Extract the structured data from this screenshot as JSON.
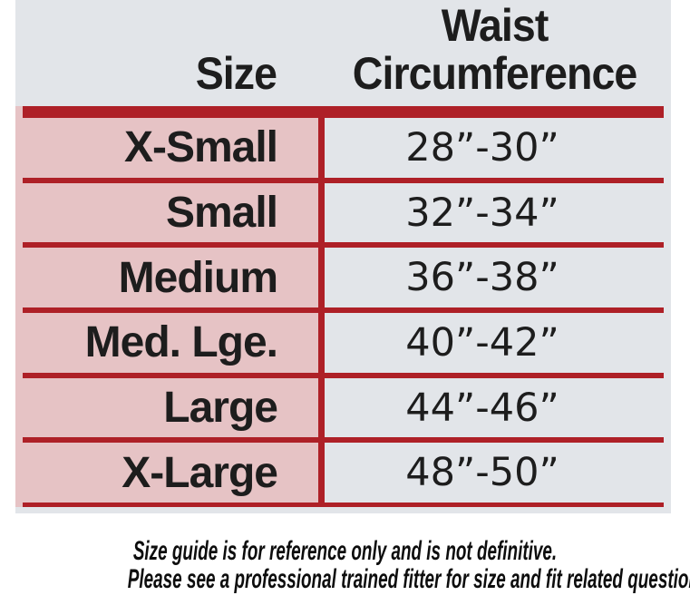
{
  "table": {
    "header": {
      "size": "Size",
      "waist": [
        "Waist",
        "Circumference"
      ]
    },
    "rows": [
      {
        "size": "X-Small",
        "waist": "28”-30”"
      },
      {
        "size": "Small",
        "waist": "32”-34”"
      },
      {
        "size": "Medium",
        "waist": "36”-38”"
      },
      {
        "size": "Med. Lge.",
        "waist": "40”-42”"
      },
      {
        "size": "Large",
        "waist": "44”-46”"
      },
      {
        "size": "X-Large",
        "waist": "48”-50”"
      }
    ]
  },
  "footnote": {
    "line1": "Size guide is for reference only and is not definitive.",
    "line2": "Please see a professional trained fitter for size and fit related questions."
  },
  "colors": {
    "scan_bg": "#e2e5e9",
    "row_pink": "#e6c3c5",
    "line_red": "#ae2027",
    "text_dark": "#1d1d1d"
  }
}
